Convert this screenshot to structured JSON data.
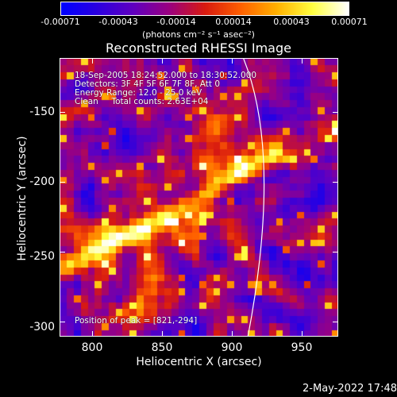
{
  "colorbar": {
    "ticks": [
      "-0.00071",
      "-0.00043",
      "-0.00014",
      "0.00014",
      "0.00043",
      "0.00071"
    ],
    "units": "(photons cm⁻² s⁻¹ asec⁻²)",
    "colors": [
      "#0000ff",
      "#2b00e0",
      "#6000c0",
      "#9a0080",
      "#d81a10",
      "#ff6000",
      "#ffb000",
      "#ffff40",
      "#ffffff"
    ]
  },
  "title": "Reconstructed RHESSI Image",
  "annotations": {
    "time": "18-Sep-2005 18:24:52.000 to 18:30:52.000",
    "detectors": "Detectors: 3F 4F 5F 6F 7F 8F, Att 0",
    "energy": "Energy Range: 12.0 - 25.0 keV",
    "method": "Clean     Total counts: 2.63E+04",
    "position": "Position of peak = [821,-294]"
  },
  "axes": {
    "xlabel": "Heliocentric X (arcsec)",
    "ylabel": "Heliocentric Y (arcsec)",
    "xticks": [
      "800",
      "850",
      "900",
      "950"
    ],
    "yticks": [
      "-150",
      "-200",
      "-250",
      "-300"
    ]
  },
  "footer": {
    "date": "2-May-2022 17:48"
  }
}
